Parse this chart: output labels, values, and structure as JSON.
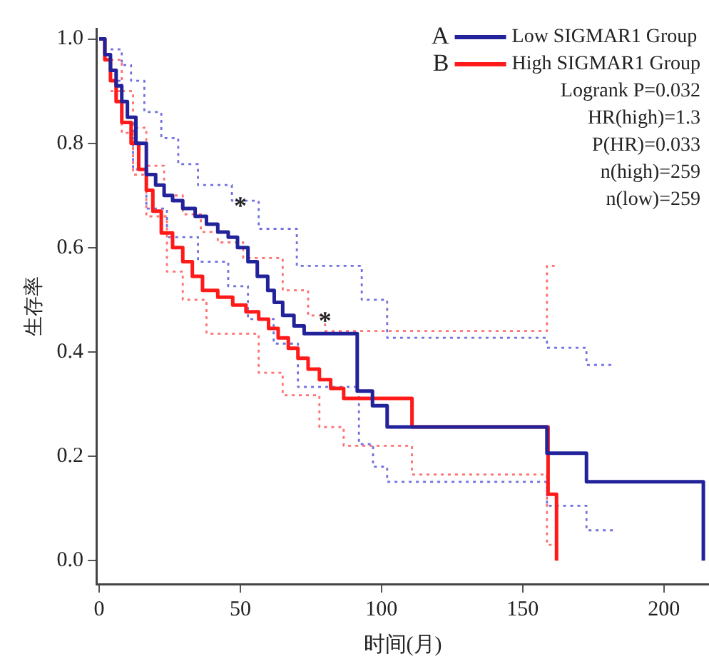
{
  "chart_data": {
    "type": "step",
    "xlabel": "时间(月)",
    "ylabel": "生存率",
    "xlim": [
      -1,
      216
    ],
    "ylim": [
      -0.045,
      1.02
    ],
    "xticks": [
      0,
      50,
      100,
      150,
      200
    ],
    "yticks": [
      {
        "value": 0,
        "label": "0.0"
      },
      {
        "value": 0.2,
        "label": "0.2"
      },
      {
        "value": 0.4,
        "label": "0.4"
      },
      {
        "value": 0.6,
        "label": "0.6"
      },
      {
        "value": 0.8,
        "label": "0.8"
      },
      {
        "value": 1,
        "label": "1.0"
      }
    ],
    "grid": false,
    "legend": "top right",
    "series": [
      {
        "name": "Low SIGMAR1 Group",
        "color": "#22229a",
        "x": [
          0,
          2,
          4,
          6,
          8,
          10,
          13,
          16.7,
          20,
          23,
          26,
          29.6,
          34,
          38,
          42,
          45.7,
          49,
          52.7,
          56,
          59.7,
          62,
          65,
          69,
          72.6,
          91.4,
          96.8,
          102,
          158.6,
          172.6,
          214
        ],
        "values": [
          1,
          0.97,
          0.94,
          0.91,
          0.88,
          0.85,
          0.8,
          0.74,
          0.72,
          0.7,
          0.69,
          0.675,
          0.66,
          0.645,
          0.63,
          0.62,
          0.6,
          0.573,
          0.545,
          0.518,
          0.495,
          0.47,
          0.45,
          0.435,
          0.325,
          0.297,
          0.256,
          0.206,
          0.151,
          0
        ]
      },
      {
        "name": "High SIGMAR1 Group",
        "color": "#ff1a1a",
        "x": [
          0,
          2,
          4,
          6,
          8,
          11.3,
          14,
          16.7,
          19,
          22,
          26,
          29.6,
          33,
          36.6,
          42,
          47.3,
          52,
          56.5,
          60,
          63.4,
          67,
          70.4,
          74,
          78,
          82,
          86.6,
          110.8,
          159,
          162
        ],
        "values": [
          1,
          0.96,
          0.92,
          0.88,
          0.84,
          0.8,
          0.75,
          0.71,
          0.67,
          0.628,
          0.6,
          0.573,
          0.545,
          0.518,
          0.505,
          0.49,
          0.477,
          0.463,
          0.445,
          0.427,
          0.407,
          0.388,
          0.367,
          0.347,
          0.33,
          0.311,
          0.256,
          0.127,
          0
        ]
      },
      {
        "color": "#7070e0",
        "line_style": "dotted",
        "x": [
          4,
          8,
          11.3,
          16,
          22,
          28,
          35,
          47,
          56.5,
          70,
          93,
          102,
          158.6,
          172.6,
          182.7
        ],
        "values": [
          0.98,
          0.95,
          0.92,
          0.86,
          0.81,
          0.76,
          0.72,
          0.69,
          0.636,
          0.565,
          0.5,
          0.427,
          0.408,
          0.375,
          0.375
        ]
      },
      {
        "color": "#7070e0",
        "line_style": "dotted",
        "x": [
          4,
          8,
          12,
          16.7,
          24,
          35,
          45.7,
          52.7,
          61.8,
          70.4,
          92,
          97,
          102,
          158.6,
          172.6,
          182.7
        ],
        "values": [
          0.92,
          0.84,
          0.75,
          0.675,
          0.62,
          0.573,
          0.526,
          0.463,
          0.416,
          0.333,
          0.223,
          0.18,
          0.151,
          0.105,
          0.058,
          0.058
        ]
      },
      {
        "color": "#ff7070",
        "line_style": "dotted",
        "x": [
          4,
          8,
          12,
          16.7,
          23,
          29.6,
          36,
          42,
          51,
          65,
          74,
          80,
          158.6,
          162
        ],
        "values": [
          0.96,
          0.9,
          0.83,
          0.757,
          0.7,
          0.664,
          0.63,
          0.61,
          0.58,
          0.518,
          0.47,
          0.44,
          0.565,
          0.565
        ]
      },
      {
        "color": "#ff7070",
        "line_style": "dotted",
        "x": [
          4,
          8,
          12,
          16.7,
          24,
          29.6,
          38,
          56.5,
          65,
          78,
          86.6,
          110.8,
          158.6,
          162
        ],
        "values": [
          0.9,
          0.82,
          0.74,
          0.66,
          0.554,
          0.5,
          0.435,
          0.36,
          0.317,
          0.256,
          0.22,
          0.165,
          0.03,
          0.03
        ]
      }
    ],
    "annotations": [
      "A",
      "B",
      "Logrank P=0.032",
      "HR(high)=1.3",
      "P(HR)=0.033",
      "n(high)=259",
      "n(low)=259",
      {
        "text": "*",
        "x": 50,
        "y": 0.69
      },
      {
        "text": "*",
        "x": 80,
        "y": 0.47
      }
    ]
  }
}
